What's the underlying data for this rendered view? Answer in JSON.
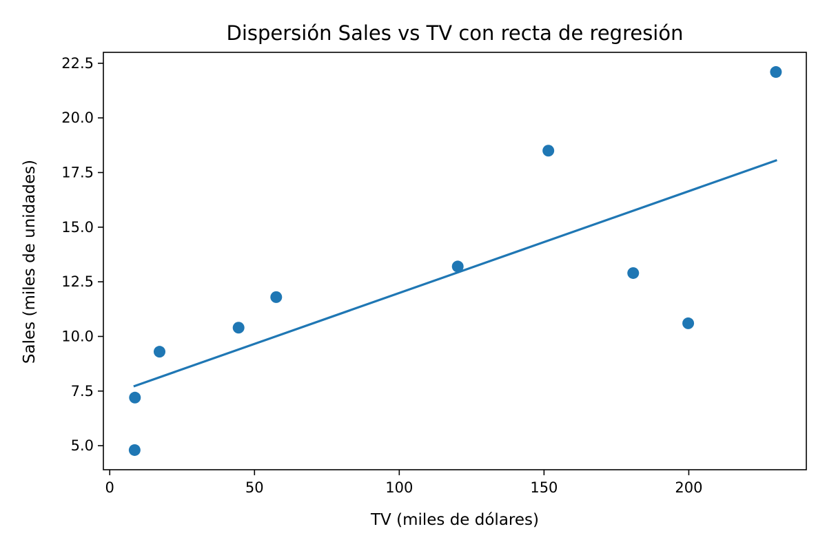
{
  "chart_data": {
    "type": "scatter",
    "title": "Dispersión Sales vs TV con recta de regresión",
    "xlabel": "TV (miles de dólares)",
    "ylabel": "Sales (miles de unidades)",
    "xlim": [
      -2.2,
      240.6
    ],
    "ylim": [
      3.9,
      23.0
    ],
    "xticks": [
      0,
      50,
      100,
      150,
      200
    ],
    "xtick_labels": [
      "0",
      "50",
      "100",
      "150",
      "200"
    ],
    "yticks": [
      5.0,
      7.5,
      10.0,
      12.5,
      15.0,
      17.5,
      20.0,
      22.5
    ],
    "ytick_labels": [
      "5.0",
      "7.5",
      "10.0",
      "12.5",
      "15.0",
      "17.5",
      "20.0",
      "22.5"
    ],
    "grid": false,
    "series": [
      {
        "type": "scatter",
        "color": "#1f77b4",
        "points": [
          {
            "x": 8.6,
            "y": 4.8
          },
          {
            "x": 8.7,
            "y": 7.2
          },
          {
            "x": 17.2,
            "y": 9.3
          },
          {
            "x": 44.5,
            "y": 10.4
          },
          {
            "x": 57.5,
            "y": 11.8
          },
          {
            "x": 120.2,
            "y": 13.2
          },
          {
            "x": 151.5,
            "y": 18.5
          },
          {
            "x": 180.8,
            "y": 12.9
          },
          {
            "x": 199.8,
            "y": 10.6
          },
          {
            "x": 230.1,
            "y": 22.1
          }
        ]
      },
      {
        "type": "line",
        "color": "#1f77b4",
        "points": [
          {
            "x": 8.6,
            "y": 7.73
          },
          {
            "x": 230.1,
            "y": 18.05
          }
        ]
      }
    ]
  }
}
